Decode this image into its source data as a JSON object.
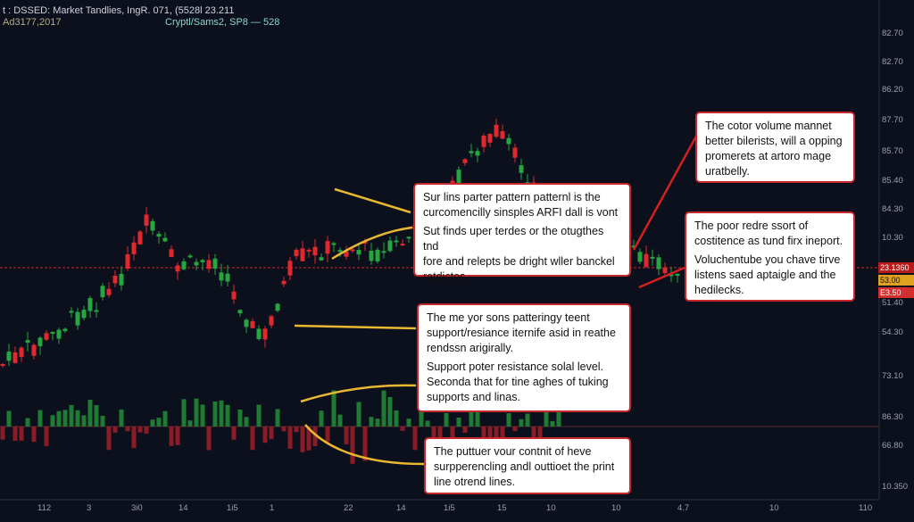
{
  "header": {
    "line1": "t : DSSED: Market Tandlies, IngR. 071, (5528l 23.211",
    "line2_left": "Ad3177,2017",
    "line2_right": "Cryptl/Sams2, SP8 — 528"
  },
  "y_axis_labels": [
    "82.70",
    "82.70",
    "86.20",
    "87.70",
    "85.70",
    "85.40",
    "84.30",
    "10.30",
    "51.40",
    "54.30",
    "73.10",
    "86.30",
    "66.80",
    "10.350"
  ],
  "price_tags": [
    "23.1360",
    "53.00",
    "E3.50"
  ],
  "x_axis_labels": [
    "112",
    "3",
    "3i0",
    "14",
    "1i5",
    "1",
    "22",
    "14",
    "1i5",
    "15",
    "10",
    "10",
    "4.7",
    "10",
    "110"
  ],
  "annotations": [
    {
      "lines": [
        "Sur lins parter pattern patternl is the",
        "curcomencilly sinsples ARFI dall is vont",
        "Sut finds uper terdes or the otugthes tnd",
        "fore and relepts be dright wller banckel",
        "retdictos."
      ]
    },
    {
      "lines": [
        "The me yor sons patteringy teent",
        "support/resiance iternife asid in reathe",
        "rendssn arigirally.",
        "Support poter resistance solal level.",
        "Seconda that for tine aghes of tuking",
        "supports and linas."
      ]
    },
    {
      "lines": [
        "The puttuer vour contnit of heve",
        "surpperencling andl outtioet the print",
        "line otrend lines."
      ]
    },
    {
      "lines": [
        "The cotor volume mannet",
        "better bilerists, will a opping",
        "promerets at artoro mage",
        "uratbelly."
      ]
    },
    {
      "lines": [
        "The poor redre ssort of",
        "costitence as tund firx ineport.",
        "Voluchentube you chave tirve",
        "listens saed aptaigle and the",
        "hedilecks."
      ]
    }
  ]
}
